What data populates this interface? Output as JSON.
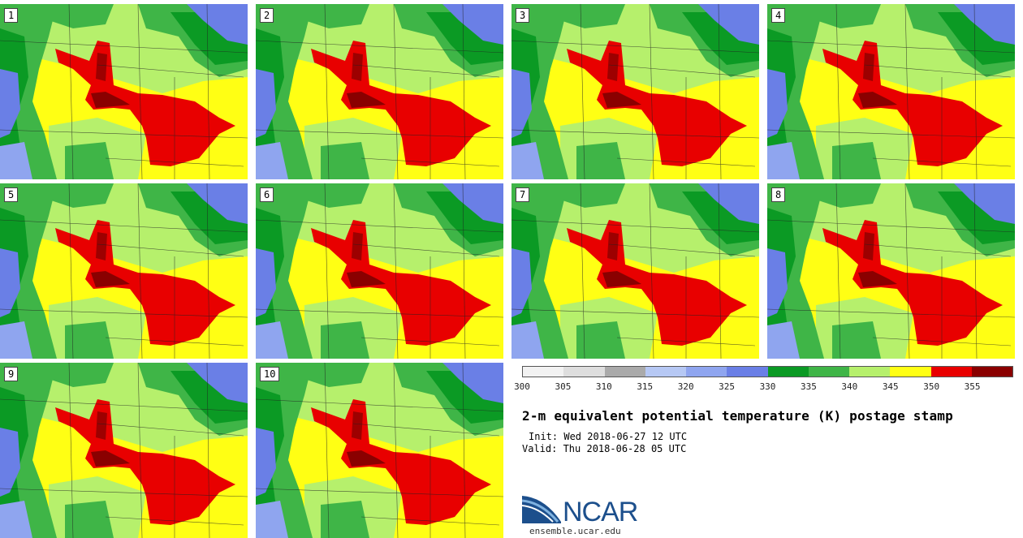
{
  "panels": [
    {
      "label": "1"
    },
    {
      "label": "2"
    },
    {
      "label": "3"
    },
    {
      "label": "4"
    },
    {
      "label": "5"
    },
    {
      "label": "6"
    },
    {
      "label": "7"
    },
    {
      "label": "8"
    },
    {
      "label": "9"
    },
    {
      "label": "10"
    }
  ],
  "colorbar": {
    "colors": [
      "#f2f2f2",
      "#dedede",
      "#aaaaaa",
      "#b6c8f4",
      "#8fa5ef",
      "#6a7fe6",
      "#0b9a24",
      "#3fb547",
      "#b6f06c",
      "#ffff14",
      "#e80000",
      "#8a0000"
    ],
    "labels": [
      "300",
      "305",
      "310",
      "315",
      "320",
      "325",
      "330",
      "335",
      "340",
      "345",
      "350",
      "355"
    ]
  },
  "title": "2-m equivalent potential temperature (K) postage stamp",
  "init": "Init: Wed 2018-06-27 12 UTC",
  "valid": "Valid: Thu 2018-06-28 05 UTC",
  "logo": {
    "text": "NCAR",
    "url": "ensemble.ucar.edu",
    "color": "#1c4f8c"
  }
}
